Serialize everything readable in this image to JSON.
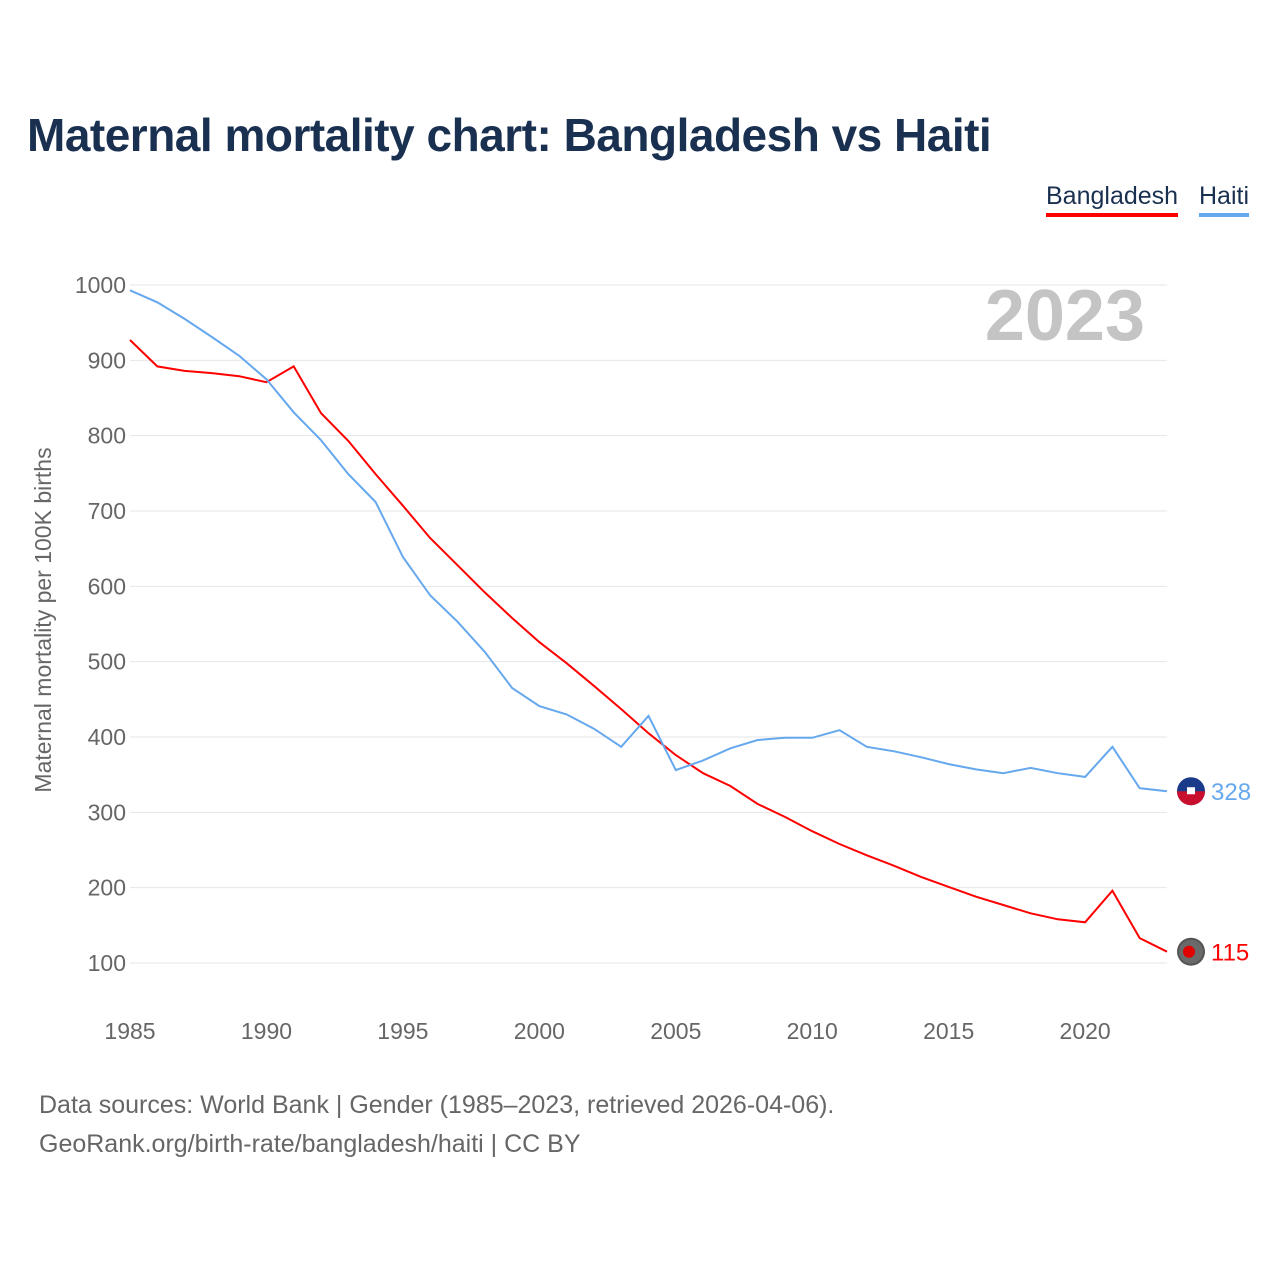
{
  "title": "Maternal mortality chart: Bangladesh vs Haiti",
  "footer": {
    "line1": "Data sources: World Bank | Gender (1985–2023, retrieved 2026-04-06).",
    "line2": "GeoRank.org/birth-rate/bangladesh/haiti | CC BY"
  },
  "chart_data": {
    "type": "line",
    "title": "Maternal mortality chart: Bangladesh vs Haiti",
    "year_label": "2023",
    "xlabel": "",
    "ylabel": "Maternal mortality per 100K births",
    "xlim": [
      1985,
      2023
    ],
    "ylim": [
      100,
      1000
    ],
    "xticks": [
      1985,
      1990,
      1995,
      2000,
      2005,
      2010,
      2015,
      2020
    ],
    "yticks": [
      100,
      200,
      300,
      400,
      500,
      600,
      700,
      800,
      900,
      1000
    ],
    "grid": true,
    "legend_position": "top-right",
    "x": [
      1985,
      1986,
      1987,
      1988,
      1989,
      1990,
      1991,
      1992,
      1993,
      1994,
      1995,
      1996,
      1997,
      1998,
      1999,
      2000,
      2001,
      2002,
      2003,
      2004,
      2005,
      2006,
      2007,
      2008,
      2009,
      2010,
      2011,
      2012,
      2013,
      2014,
      2015,
      2016,
      2017,
      2018,
      2019,
      2020,
      2021,
      2022,
      2023
    ],
    "series": [
      {
        "name": "Bangladesh",
        "color": "#ff0000",
        "end_label": "115",
        "values": [
          927,
          892,
          886,
          883,
          879,
          871,
          892,
          830,
          793,
          749,
          707,
          664,
          628,
          592,
          558,
          526,
          498,
          468,
          437,
          405,
          376,
          352,
          335,
          311,
          294,
          275,
          258,
          243,
          229,
          214,
          201,
          188,
          177,
          166,
          158,
          154,
          196,
          133,
          115
        ]
      },
      {
        "name": "Haiti",
        "color": "#66a8ee",
        "end_label": "328",
        "values": [
          993,
          977,
          955,
          931,
          906,
          875,
          831,
          794,
          749,
          712,
          639,
          588,
          553,
          513,
          465,
          441,
          430,
          411,
          387,
          428,
          356,
          369,
          385,
          396,
          399,
          399,
          409,
          387,
          381,
          373,
          364,
          357,
          352,
          359,
          352,
          347,
          387,
          332,
          328
        ]
      }
    ]
  }
}
